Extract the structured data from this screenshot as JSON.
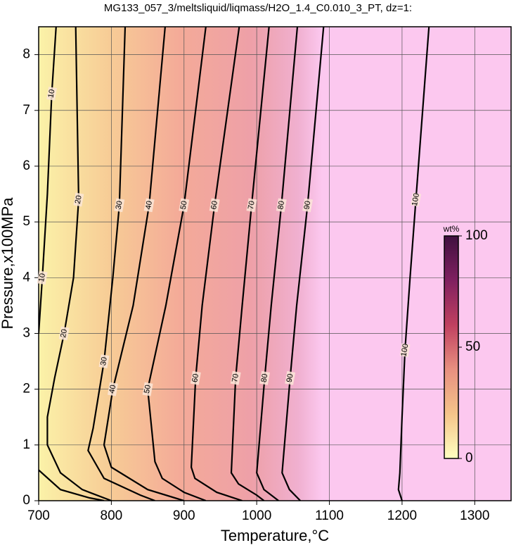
{
  "chart_data": {
    "type": "contour",
    "title": "MG133_057_3/meltsliquid/liqmass/H2O_1.4_C0.010_3_PT, dz=1:",
    "x_label": "Temperature,°C",
    "y_label": "Pressure,x100MPa",
    "xlim": [
      700,
      1350
    ],
    "ylim": [
      0,
      8.5
    ],
    "xticks": [
      700,
      800,
      900,
      1000,
      1100,
      1200,
      1300
    ],
    "yticks": [
      0,
      1,
      2,
      3,
      4,
      5,
      6,
      7,
      8
    ],
    "grid": true,
    "contours": [
      {
        "level": 10,
        "x": [
          700,
          705,
          712,
          718,
          724,
          null,
          700,
          730,
          770,
          790
        ],
        "y": [
          3,
          4,
          5.5,
          7.3,
          8.5,
          null,
          0.55,
          0.2,
          0.05,
          0
        ]
      },
      {
        "level": 20,
        "x": [
          751,
          755,
          748,
          735,
          722,
          712,
          712,
          730,
          760,
          800
        ],
        "y": [
          8.5,
          5.4,
          4,
          3,
          2.2,
          1.5,
          1,
          0.5,
          0.2,
          0
        ]
      },
      {
        "level": 30,
        "x": [
          819,
          811,
          802,
          790,
          775,
          768,
          790,
          840,
          860
        ],
        "y": [
          8.5,
          5.3,
          4,
          2.5,
          1.3,
          0.9,
          0.4,
          0.1,
          0
        ]
      },
      {
        "level": 40,
        "x": [
          874,
          852,
          830,
          802,
          790,
          800,
          850,
          900
        ],
        "y": [
          8.5,
          5.3,
          3.5,
          2,
          1,
          0.6,
          0.2,
          0
        ]
      },
      {
        "level": 50,
        "x": [
          930,
          900,
          875,
          850,
          860,
          870,
          900,
          930
        ],
        "y": [
          8.5,
          5.3,
          3.5,
          2,
          0.7,
          0.4,
          0.15,
          0
        ]
      },
      {
        "level": 60,
        "x": [
          976,
          942,
          925,
          916,
          910,
          915,
          945,
          980
        ],
        "y": [
          8.5,
          5.3,
          3.5,
          2.2,
          0.6,
          0.4,
          0.15,
          0
        ]
      },
      {
        "level": 70,
        "x": [
          1017,
          993,
          980,
          971,
          965,
          975,
          1000,
          1010
        ],
        "y": [
          8.5,
          5.3,
          3.5,
          2.2,
          0.5,
          0.3,
          0.1,
          0
        ]
      },
      {
        "level": 80,
        "x": [
          1056,
          1034,
          1020,
          1011,
          1000,
          1010,
          1030
        ],
        "y": [
          8.5,
          5.3,
          3.5,
          2.2,
          0.5,
          0.2,
          0
        ]
      },
      {
        "level": 90,
        "x": [
          1092,
          1070,
          1055,
          1046,
          1035,
          1045,
          1060
        ],
        "y": [
          8.5,
          5.3,
          3.5,
          2.2,
          0.5,
          0.2,
          0
        ]
      },
      {
        "level": 100,
        "x": [
          1237,
          1219,
          1211,
          1204,
          1200,
          1197,
          1195,
          1200
        ],
        "y": [
          8.5,
          5.4,
          4,
          2.7,
          1.5,
          0.5,
          0.2,
          0
        ]
      }
    ],
    "colorbar": {
      "label": "wt%",
      "lim": [
        0,
        100
      ],
      "ticks": [
        0,
        50,
        100
      ],
      "colormap": [
        "#ffffc0",
        "#f5c48a",
        "#e89080",
        "#c04060",
        "#802060",
        "#401040"
      ]
    }
  }
}
